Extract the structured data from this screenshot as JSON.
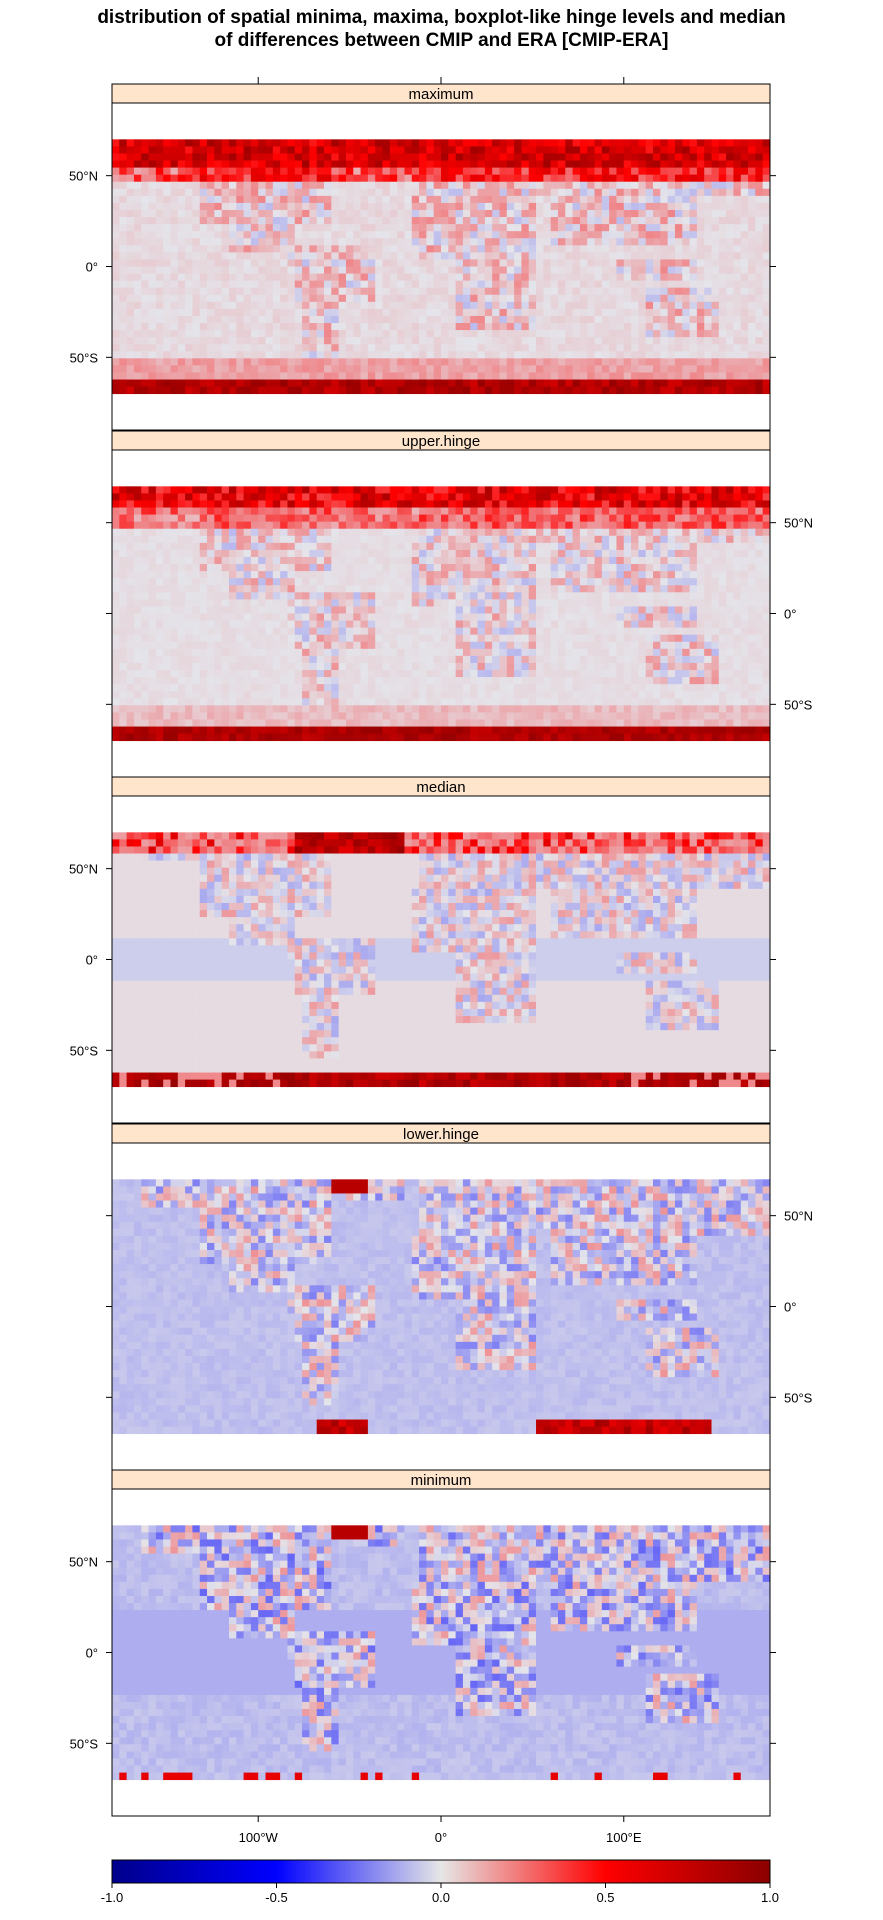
{
  "title": {
    "line1": "distribution of spatial minima, maxima, boxplot-like hinge levels and median",
    "line2": "of differences between CMIP and ERA [CMIP-ERA]"
  },
  "colors": {
    "strip": "#ffe5cc",
    "frame": "#000000",
    "neutral": "#e2e2ea",
    "scale": [
      "#00008b",
      "#0000ff",
      "#e6e6e6",
      "#ff0000",
      "#8b0000"
    ]
  },
  "chart_data": {
    "type": "heatmap",
    "layout": "5 stacked map panels sharing x and y axes, single colorbar at bottom",
    "panels": [
      {
        "name": "maximum",
        "y_axis_side": "left",
        "pattern": "strong positive at high northern latitudes (50N-70N) over land and Arctic ocean and along southern ocean band near 60S-70S; near zero elsewhere"
      },
      {
        "name": "upper.hinge",
        "y_axis_side": "right",
        "pattern": "positive at high northern latitudes and in band 60S-70S; weakly positive over land; near zero elsewhere"
      },
      {
        "name": "median",
        "y_axis_side": "left",
        "pattern": "positive over parts of high northern latitudes and 60S-70S band; mixed small values over land"
      },
      {
        "name": "lower.hinge",
        "y_axis_side": "right",
        "pattern": "mostly near zero to slightly negative; small positive patches near 70N and 65S; mixed over land"
      },
      {
        "name": "minimum",
        "y_axis_side": "left",
        "pattern": "slightly negative over northern hemisphere land and tropics band; small positive patches near 70N and 65S"
      }
    ],
    "x_axis": {
      "ticks": [
        "100°W",
        "0°",
        "100°E"
      ],
      "tick_values": [
        -100,
        0,
        100
      ],
      "range": [
        -180,
        180
      ]
    },
    "y_axis": {
      "ticks": [
        "50°N",
        "0°",
        "50°S"
      ],
      "tick_values": [
        50,
        0,
        -50
      ],
      "range": [
        -90,
        90
      ],
      "data_extent": [
        -70,
        70
      ]
    },
    "colorbar": {
      "ticks": [
        "-1.0",
        "-0.5",
        "0.0",
        "0.5",
        "1.0"
      ],
      "tick_values": [
        -1.0,
        -0.5,
        0.0,
        0.5,
        1.0
      ],
      "range": [
        -1.0,
        1.0
      ]
    }
  }
}
